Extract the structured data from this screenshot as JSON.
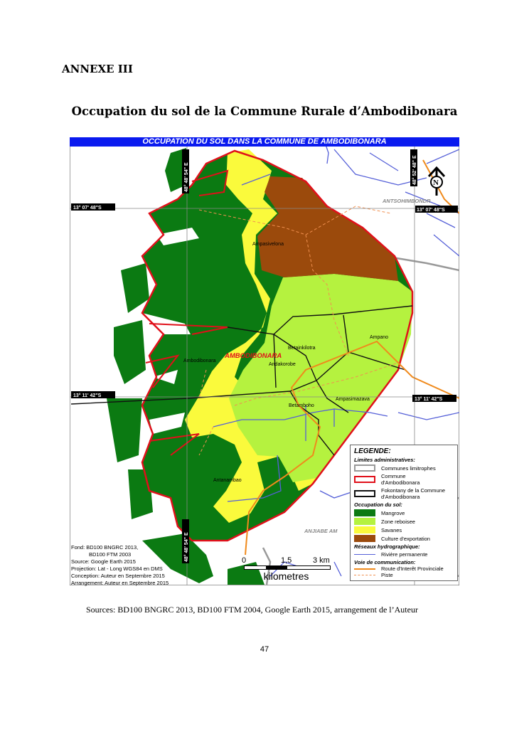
{
  "document": {
    "annex_label": "ANNEXE III",
    "heading": "Occupation du sol de la Commune Rurale d’Ambodibonara",
    "sources": "Sources: BD100 BNGRC 2013, BD100 FTM 2004, Google Earth 2015, arrangement de l’Auteur",
    "page_number": "47"
  },
  "map": {
    "title": "OCCUPATION DU SOL DANS LA COMMUNE DE AMBODIBONARA",
    "coords": {
      "lat_north": "13° 07' 48\"S",
      "lat_south": "13° 11' 42\"S",
      "lon_west": "48° 48' 54\" E",
      "lon_east": "48° 52' 48\" E"
    },
    "north_arrow": "N",
    "places": {
      "ampasivelona": "Ampasivelona",
      "betainkilotra": "Betainkilotra",
      "ampano": "Ampano",
      "commune": "AMBODIBONARA",
      "ambodibonara": "Ambodibonara",
      "andakorobe": "Andakorobe",
      "ampasimazava": "Ampasimazava",
      "betamboho": "Betamboho",
      "antanambao": "Antanambao",
      "antsohimbondr": "ANTSOHIMBONDR",
      "anjiabe": "ANJIABE AM"
    },
    "credits": [
      "Fond: BD100 BNGRC 2013,",
      "BD100 FTM 2003",
      "Source: Google Earth 2015",
      "Projection: Lat - Long WGS84 en DMS",
      "Conception: Auteur en Septembre 2015",
      "Arrangement: Auteur en Septembre 2015"
    ],
    "scale": {
      "ticks": [
        "0",
        "1,5",
        "3 km"
      ],
      "unit": "kilometres"
    },
    "colors": {
      "mangrove": "#0b7a12",
      "zone_reboisee": "#b5f23f",
      "savanes": "#fafa3c",
      "culture": "#9b4a0c",
      "commune_border": "#e0101a",
      "river": "#5560d8",
      "route": "#f08a1c"
    },
    "legend": {
      "title": "LEGENDE:",
      "admin_title": "Limites administratives:",
      "communes_limitrophes": "Communes limitrophes",
      "commune_1": "Commune",
      "commune_2": "d'Ambodibonara",
      "fokontany_1": "Fokontany de la Commune",
      "fokontany_2": "d'Ambodibonara",
      "occupation_title": "Occupation du sol:",
      "mangrove": "Mangrove",
      "zone_reboisee": "Zone reboisee",
      "savanes": "Savanes",
      "culture": "Culture d'exportation",
      "hydro_title": "Réseaux hydrographique:",
      "riviere": "Rivière permanente",
      "voie_title": "Voie de communication:",
      "route": "Route d'Interêt Provinciale",
      "piste": "Piste"
    }
  }
}
